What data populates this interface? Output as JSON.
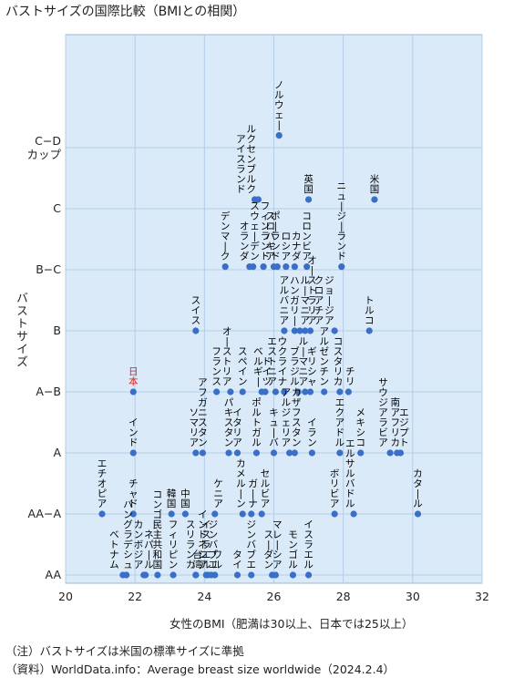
{
  "chart_data": {
    "type": "scatter",
    "title": "バストサイズの国際比較（BMIとの相関）",
    "xlabel": "女性のBMI（肥満は30以上、日本では25以上）",
    "ylabel": "バストサイズ",
    "xlim": [
      20,
      32
    ],
    "xticks": [
      20,
      22,
      24,
      26,
      28,
      30,
      32
    ],
    "xtick_labels": [
      "20",
      "22",
      "24",
      "26",
      "28",
      "30",
      "32"
    ],
    "yticks": [
      0,
      1,
      2,
      3,
      4,
      5,
      6,
      7
    ],
    "ytick_labels": [
      "AA",
      "AA−A",
      "A",
      "A−B",
      "B",
      "B−C",
      "C",
      "C−D\nカップ"
    ],
    "ylim": [
      0,
      8.8
    ],
    "grid": true,
    "colors": {
      "point": "#3a6fc9",
      "highlight": "#d62020",
      "plot_bg": "#daeaf8",
      "grid": "#b4cde6"
    },
    "points": [
      {
        "label": "ノルウェー",
        "x": 26.15,
        "y": 7.2,
        "lx": 26.15
      },
      {
        "label": "ルクセンブルク",
        "x": 25.55,
        "y": 6.15,
        "lx": 25.35
      },
      {
        "label": "アイスランド",
        "x": 25.45,
        "y": 6.15,
        "lx": 25.05
      },
      {
        "label": "英国",
        "x": 27.0,
        "y": 6.15,
        "lx": 27.0
      },
      {
        "label": "米国",
        "x": 28.9,
        "y": 6.15,
        "lx": 28.9
      },
      {
        "label": "デンマーク",
        "x": 24.6,
        "y": 5.05,
        "lx": 24.6
      },
      {
        "label": "オランダ",
        "x": 25.3,
        "y": 5.05,
        "lx": 25.15
      },
      {
        "label": "スウェーデン",
        "x": 25.4,
        "y": 5.05,
        "lx": 25.45
      },
      {
        "label": "フィンランド",
        "x": 25.7,
        "y": 5.05,
        "lx": 25.75
      },
      {
        "label": "ポーランド",
        "x": 26.0,
        "y": 5.05,
        "lx": 26.05
      },
      {
        "label": "スロバキア",
        "x": 26.1,
        "y": 5.05,
        "lx": 25.9
      },
      {
        "label": "ロシア",
        "x": 26.35,
        "y": 5.05,
        "lx": 26.35
      },
      {
        "label": "カナダ",
        "x": 26.6,
        "y": 5.05,
        "lx": 26.65
      },
      {
        "label": "コロンビア",
        "x": 26.95,
        "y": 5.05,
        "lx": 26.95
      },
      {
        "label": "ニュージーランド",
        "x": 27.95,
        "y": 5.05,
        "lx": 27.95
      },
      {
        "label": "スイス",
        "x": 23.75,
        "y": 4.0,
        "lx": 23.75
      },
      {
        "label": "アルバニア",
        "x": 26.3,
        "y": 4.0,
        "lx": 26.3
      },
      {
        "label": "ハンガリー",
        "x": 26.6,
        "y": 4.0,
        "lx": 26.6
      },
      {
        "label": "ルーマニア",
        "x": 26.75,
        "y": 4.0,
        "lx": 26.9
      },
      {
        "label": "オーストラリア",
        "x": 26.9,
        "y": 4.0,
        "lx": 27.1
      },
      {
        "label": "クロアチア",
        "x": 27.05,
        "y": 4.0,
        "lx": 27.3
      },
      {
        "label": "ジョージア",
        "x": 27.75,
        "y": 4.0,
        "lx": 27.6
      },
      {
        "label": "トルコ",
        "x": 28.75,
        "y": 4.0,
        "lx": 28.75
      },
      {
        "label": "日本",
        "x": 21.95,
        "y": 3.0,
        "lx": 21.95,
        "highlight": true
      },
      {
        "label": "フランス",
        "x": 24.35,
        "y": 3.0,
        "lx": 24.35
      },
      {
        "label": "オーストリア",
        "x": 24.75,
        "y": 3.0,
        "lx": 24.65
      },
      {
        "label": "スペイン",
        "x": 25.1,
        "y": 3.0,
        "lx": 25.1
      },
      {
        "label": "ベルギー",
        "x": 25.65,
        "y": 3.0,
        "lx": 25.55
      },
      {
        "label": "エストニア",
        "x": 26.05,
        "y": 3.0,
        "lx": 25.95
      },
      {
        "label": "ドイツ",
        "x": 25.75,
        "y": 3.0,
        "lx": 25.8
      },
      {
        "label": "ウクライナ",
        "x": 26.3,
        "y": 3.0,
        "lx": 26.25
      },
      {
        "label": "ブラジル",
        "x": 26.7,
        "y": 3.0,
        "lx": 26.6
      },
      {
        "label": "ルーマニア",
        "x": 26.9,
        "y": 3.0,
        "lx": 26.85
      },
      {
        "label": "ギリシャ",
        "x": 27.05,
        "y": 3.0,
        "lx": 27.1
      },
      {
        "label": "アルゼンチン",
        "x": 27.45,
        "y": 3.0,
        "lx": 27.45
      },
      {
        "label": "コスタリカ",
        "x": 27.9,
        "y": 3.0,
        "lx": 27.85
      },
      {
        "label": "チリ",
        "x": 28.15,
        "y": 3.0,
        "lx": 28.2
      },
      {
        "label": "アフガニスタン",
        "x": 23.95,
        "y": 2.0,
        "lx": 23.95
      },
      {
        "label": "ソマリア",
        "x": 23.75,
        "y": 2.0,
        "lx": 23.7
      },
      {
        "label": "インド",
        "x": 21.95,
        "y": 2.0,
        "lx": 21.95
      },
      {
        "label": "パキスタン",
        "x": 24.7,
        "y": 2.0,
        "lx": 24.7
      },
      {
        "label": "イタリア",
        "x": 24.95,
        "y": 2.0,
        "lx": 24.95
      },
      {
        "label": "ポルトガル",
        "x": 25.5,
        "y": 2.0,
        "lx": 25.5
      },
      {
        "label": "キューバ",
        "x": 26.0,
        "y": 2.0,
        "lx": 26.0
      },
      {
        "label": "アルジェリア",
        "x": 26.45,
        "y": 2.0,
        "lx": 26.35
      },
      {
        "label": "カザフスタン",
        "x": 26.6,
        "y": 2.0,
        "lx": 26.65
      },
      {
        "label": "イラン",
        "x": 27.1,
        "y": 2.0,
        "lx": 27.1
      },
      {
        "label": "エクアドル",
        "x": 27.9,
        "y": 2.0,
        "lx": 27.9
      },
      {
        "label": "メキシコ",
        "x": 28.5,
        "y": 2.0,
        "lx": 28.5
      },
      {
        "label": "サウジアラビア",
        "x": 29.35,
        "y": 2.0,
        "lx": 29.15
      },
      {
        "label": "南アフリカ",
        "x": 29.55,
        "y": 2.0,
        "lx": 29.5
      },
      {
        "label": "エジプト",
        "x": 29.65,
        "y": 2.0,
        "lx": 29.75
      },
      {
        "label": "エチオピア",
        "x": 21.05,
        "y": 1.0,
        "lx": 21.05
      },
      {
        "label": "チャド",
        "x": 21.95,
        "y": 1.0,
        "lx": 21.95
      },
      {
        "label": "韓国",
        "x": 23.05,
        "y": 1.0,
        "lx": 23.05
      },
      {
        "label": "中国",
        "x": 23.45,
        "y": 1.0,
        "lx": 23.45
      },
      {
        "label": "ケニア",
        "x": 24.3,
        "y": 1.0,
        "lx": 24.4
      },
      {
        "label": "カメルーン",
        "x": 25.1,
        "y": 1.0,
        "lx": 25.05
      },
      {
        "label": "ガーナ",
        "x": 25.35,
        "y": 1.0,
        "lx": 25.4
      },
      {
        "label": "セルビア",
        "x": 25.65,
        "y": 1.0,
        "lx": 25.75
      },
      {
        "label": "ボリビア",
        "x": 27.75,
        "y": 1.0,
        "lx": 27.75
      },
      {
        "label": "エルサルバドル",
        "x": 28.3,
        "y": 1.0,
        "lx": 28.2
      },
      {
        "label": "カタール",
        "x": 30.15,
        "y": 1.0,
        "lx": 30.15
      },
      {
        "label": "ベトナム",
        "x": 21.65,
        "y": 0.0,
        "lx": 21.4
      },
      {
        "label": "バングラデシュ",
        "x": 21.75,
        "y": 0.0,
        "lx": 21.8
      },
      {
        "label": "カンボジア",
        "x": 22.25,
        "y": 0.0,
        "lx": 22.1
      },
      {
        "label": "ネパール",
        "x": 22.3,
        "y": 0.0,
        "lx": 22.4
      },
      {
        "label": "コンゴ民主共和国",
        "x": 22.65,
        "y": 0.0,
        "lx": 22.65
      },
      {
        "label": "フィリピン",
        "x": 23.1,
        "y": 0.0,
        "lx": 23.1
      },
      {
        "label": "スリランカ",
        "x": 23.75,
        "y": 0.0,
        "lx": 23.6
      },
      {
        "label": "台湾",
        "x": 23.75,
        "y": 0.0,
        "lx": 23.8
      },
      {
        "label": "インドネシア",
        "x": 24.05,
        "y": 0.0,
        "lx": 23.95
      },
      {
        "label": "イスラエル",
        "x": 24.1,
        "y": 0.0,
        "lx": 24.05
      },
      {
        "label": "ジンバブエ",
        "x": 24.2,
        "y": 0.0,
        "lx": 24.25
      },
      {
        "label": "ワル",
        "x": 24.3,
        "y": 0.0,
        "lx": 24.38
      },
      {
        "label": "タイ",
        "x": 24.95,
        "y": 0.0,
        "lx": 24.95
      },
      {
        "label": "ジンバブエ",
        "x": 25.35,
        "y": 0.0,
        "lx": 25.35
      },
      {
        "label": "スーダン",
        "x": 25.95,
        "y": 0.0,
        "lx": 25.85
      },
      {
        "label": "マレーシア",
        "x": 26.05,
        "y": 0.0,
        "lx": 26.1
      },
      {
        "label": "モンゴル",
        "x": 26.55,
        "y": 0.0,
        "lx": 26.55
      },
      {
        "label": "イスラエル",
        "x": 27.0,
        "y": 0.0,
        "lx": 27.0
      }
    ]
  },
  "notes": [
    "（注）バストサイズは米国の標準サイズに準拠",
    "（資料）WorldData.info：Average breast size worldwide（2024.2.4）"
  ]
}
